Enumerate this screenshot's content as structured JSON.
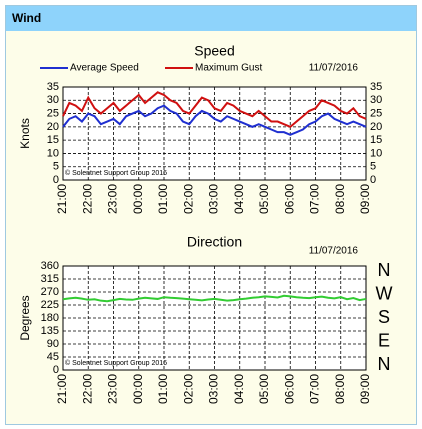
{
  "header": {
    "title": "Wind"
  },
  "chart_data": [
    {
      "type": "line",
      "title": "Speed",
      "date": "11/07/2016",
      "ylabel": "Knots",
      "note": "© Solentnet  Support  Group 2016",
      "categories": [
        "21:00",
        null,
        null,
        null,
        "22:00",
        null,
        null,
        null,
        "23:00",
        null,
        null,
        null,
        "00:00",
        null,
        null,
        null,
        "01:00",
        null,
        null,
        null,
        "02:00",
        null,
        null,
        null,
        "03:00",
        null,
        null,
        null,
        "04:00",
        null,
        null,
        null,
        "05:00",
        null,
        null,
        null,
        "06:00",
        null,
        null,
        null,
        "07:00",
        null,
        null,
        null,
        "08:00",
        null,
        null,
        null,
        "09:00"
      ],
      "series": [
        {
          "name": "Average Speed",
          "color": "#1f2fd0",
          "values": [
            20,
            23,
            24,
            22,
            25,
            24,
            21,
            22,
            23,
            21,
            24,
            25,
            26,
            24,
            25,
            27,
            28,
            26,
            25,
            22,
            21,
            24,
            26,
            25,
            23,
            22,
            24,
            23,
            22,
            21,
            20,
            21,
            20,
            19,
            18,
            18,
            17,
            18,
            19,
            21,
            22,
            24,
            25,
            23,
            22,
            21,
            22,
            21,
            20
          ]
        },
        {
          "name": "Maximum Gust",
          "color": "#d01010",
          "values": [
            24,
            29,
            28,
            26,
            31,
            27,
            25,
            27,
            29,
            26,
            28,
            30,
            32,
            29,
            31,
            33,
            32,
            30,
            29,
            26,
            25,
            28,
            31,
            30,
            27,
            26,
            29,
            28,
            26,
            25,
            24,
            26,
            24,
            22,
            22,
            21,
            20,
            22,
            24,
            26,
            27,
            30,
            29,
            28,
            26,
            25,
            27,
            24,
            23
          ]
        }
      ],
      "ylim": [
        0,
        35
      ],
      "yticks": [
        0,
        5,
        10,
        15,
        20,
        25,
        30,
        35
      ],
      "grid": true,
      "legend": "top"
    },
    {
      "type": "line",
      "title": "Direction",
      "date": "11/07/2016",
      "ylabel": "Degrees",
      "note": "© Solentnet  Support  Group 2016",
      "compass": [
        "N",
        "W",
        "S",
        "E",
        "N"
      ],
      "categories": [
        "21:00",
        null,
        null,
        null,
        "22:00",
        null,
        null,
        null,
        "23:00",
        null,
        null,
        null,
        "00:00",
        null,
        null,
        null,
        "01:00",
        null,
        null,
        null,
        "02:00",
        null,
        null,
        null,
        "03:00",
        null,
        null,
        null,
        "04:00",
        null,
        null,
        null,
        "05:00",
        null,
        null,
        null,
        "06:00",
        null,
        null,
        null,
        "07:00",
        null,
        null,
        null,
        "08:00",
        null,
        null,
        null,
        "09:00"
      ],
      "series": [
        {
          "color": "#33cc33",
          "values": [
            245,
            248,
            250,
            247,
            243,
            245,
            240,
            238,
            242,
            246,
            244,
            243,
            247,
            250,
            248,
            246,
            252,
            250,
            249,
            247,
            245,
            243,
            241,
            244,
            246,
            243,
            240,
            242,
            245,
            247,
            250,
            252,
            255,
            253,
            251,
            257,
            255,
            252,
            250,
            249,
            252,
            254,
            250,
            248,
            252,
            245,
            249,
            242,
            246
          ]
        }
      ],
      "ylim": [
        0,
        360
      ],
      "yticks": [
        0,
        45,
        90,
        135,
        180,
        225,
        270,
        315,
        360
      ],
      "grid": true
    }
  ]
}
